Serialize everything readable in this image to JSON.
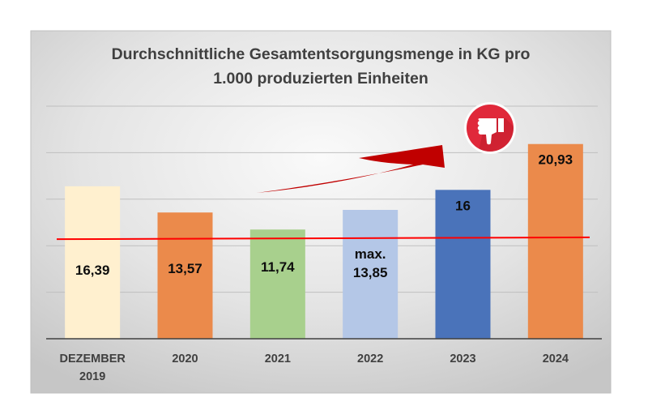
{
  "chart_data": {
    "type": "bar",
    "title": [
      "Durchschnittliche Gesamtentsorgungsmenge in KG pro",
      "1.000 produzierten Einheiten"
    ],
    "xlabel": "",
    "ylabel": "",
    "ylim": [
      0,
      25
    ],
    "grid": true,
    "gridline_step": 5,
    "y_tick_labels_shown": false,
    "legend": "none",
    "categories": [
      [
        "DEZEMBER",
        "2019"
      ],
      [
        "2020"
      ],
      [
        "2021"
      ],
      [
        "2022"
      ],
      [
        "2023"
      ],
      [
        "2024"
      ]
    ],
    "values": [
      16.39,
      13.57,
      11.74,
      13.85,
      16,
      20.93
    ],
    "data_labels": [
      [
        "16,39"
      ],
      [
        "13,57"
      ],
      [
        "11,74"
      ],
      [
        "max.",
        "13,85"
      ],
      [
        "16"
      ],
      [
        "20,93"
      ]
    ],
    "bar_colors": [
      "#FFF0CF",
      "#EB8A4B",
      "#A8D08D",
      "#B4C7E7",
      "#4A73BA",
      "#EB8A4B"
    ],
    "reference_line": {
      "value_start": 10.7,
      "value_end": 10.9,
      "color": "#FF0000"
    },
    "annotations": [
      {
        "type": "trend-arrow",
        "direction": "up-right",
        "color": "#C00000"
      },
      {
        "type": "thumbs-down-icon",
        "color": "#E0283A"
      }
    ]
  },
  "colors": {
    "axis": "#404040",
    "grid": "#BFBFBF",
    "title": "#404040"
  }
}
